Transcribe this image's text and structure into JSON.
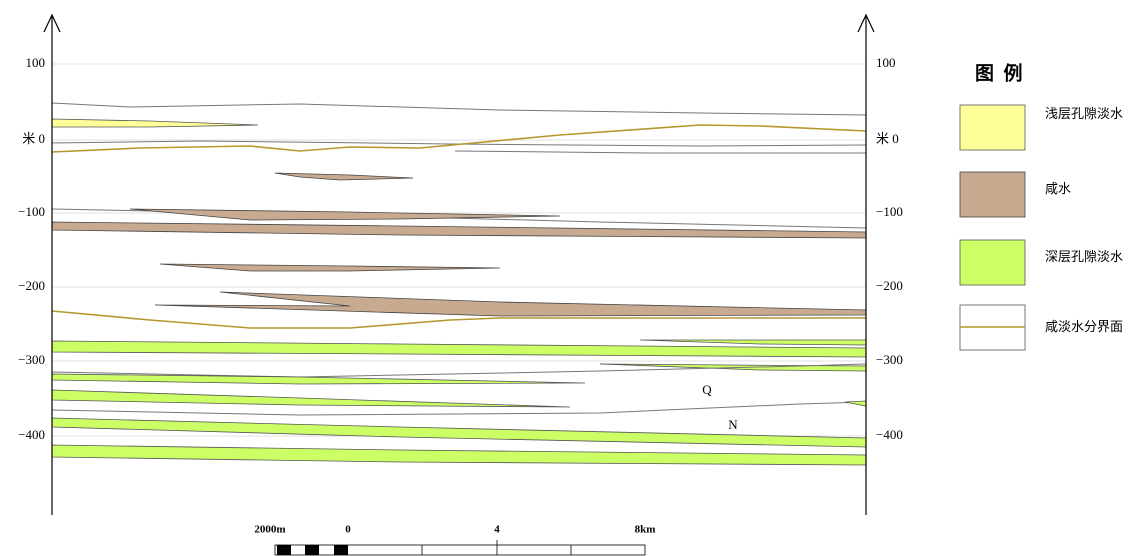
{
  "left_axis": {
    "ticks": [
      "100",
      "米 0",
      "−100",
      "−200",
      "−300",
      "−400"
    ]
  },
  "right_axis": {
    "ticks": [
      "100",
      "米 0",
      "−100",
      "−200",
      "−300",
      "−400"
    ]
  },
  "legend": {
    "title": "图  例",
    "items": [
      "浅层孔隙淡水",
      "咸水",
      "深层孔隙淡水",
      "咸淡水分界面"
    ]
  },
  "labels": {
    "upper_unit": "Q",
    "lower_unit": "N"
  },
  "scale_bar": {
    "labels": [
      "2000m",
      "0",
      "4",
      "8km"
    ]
  }
}
